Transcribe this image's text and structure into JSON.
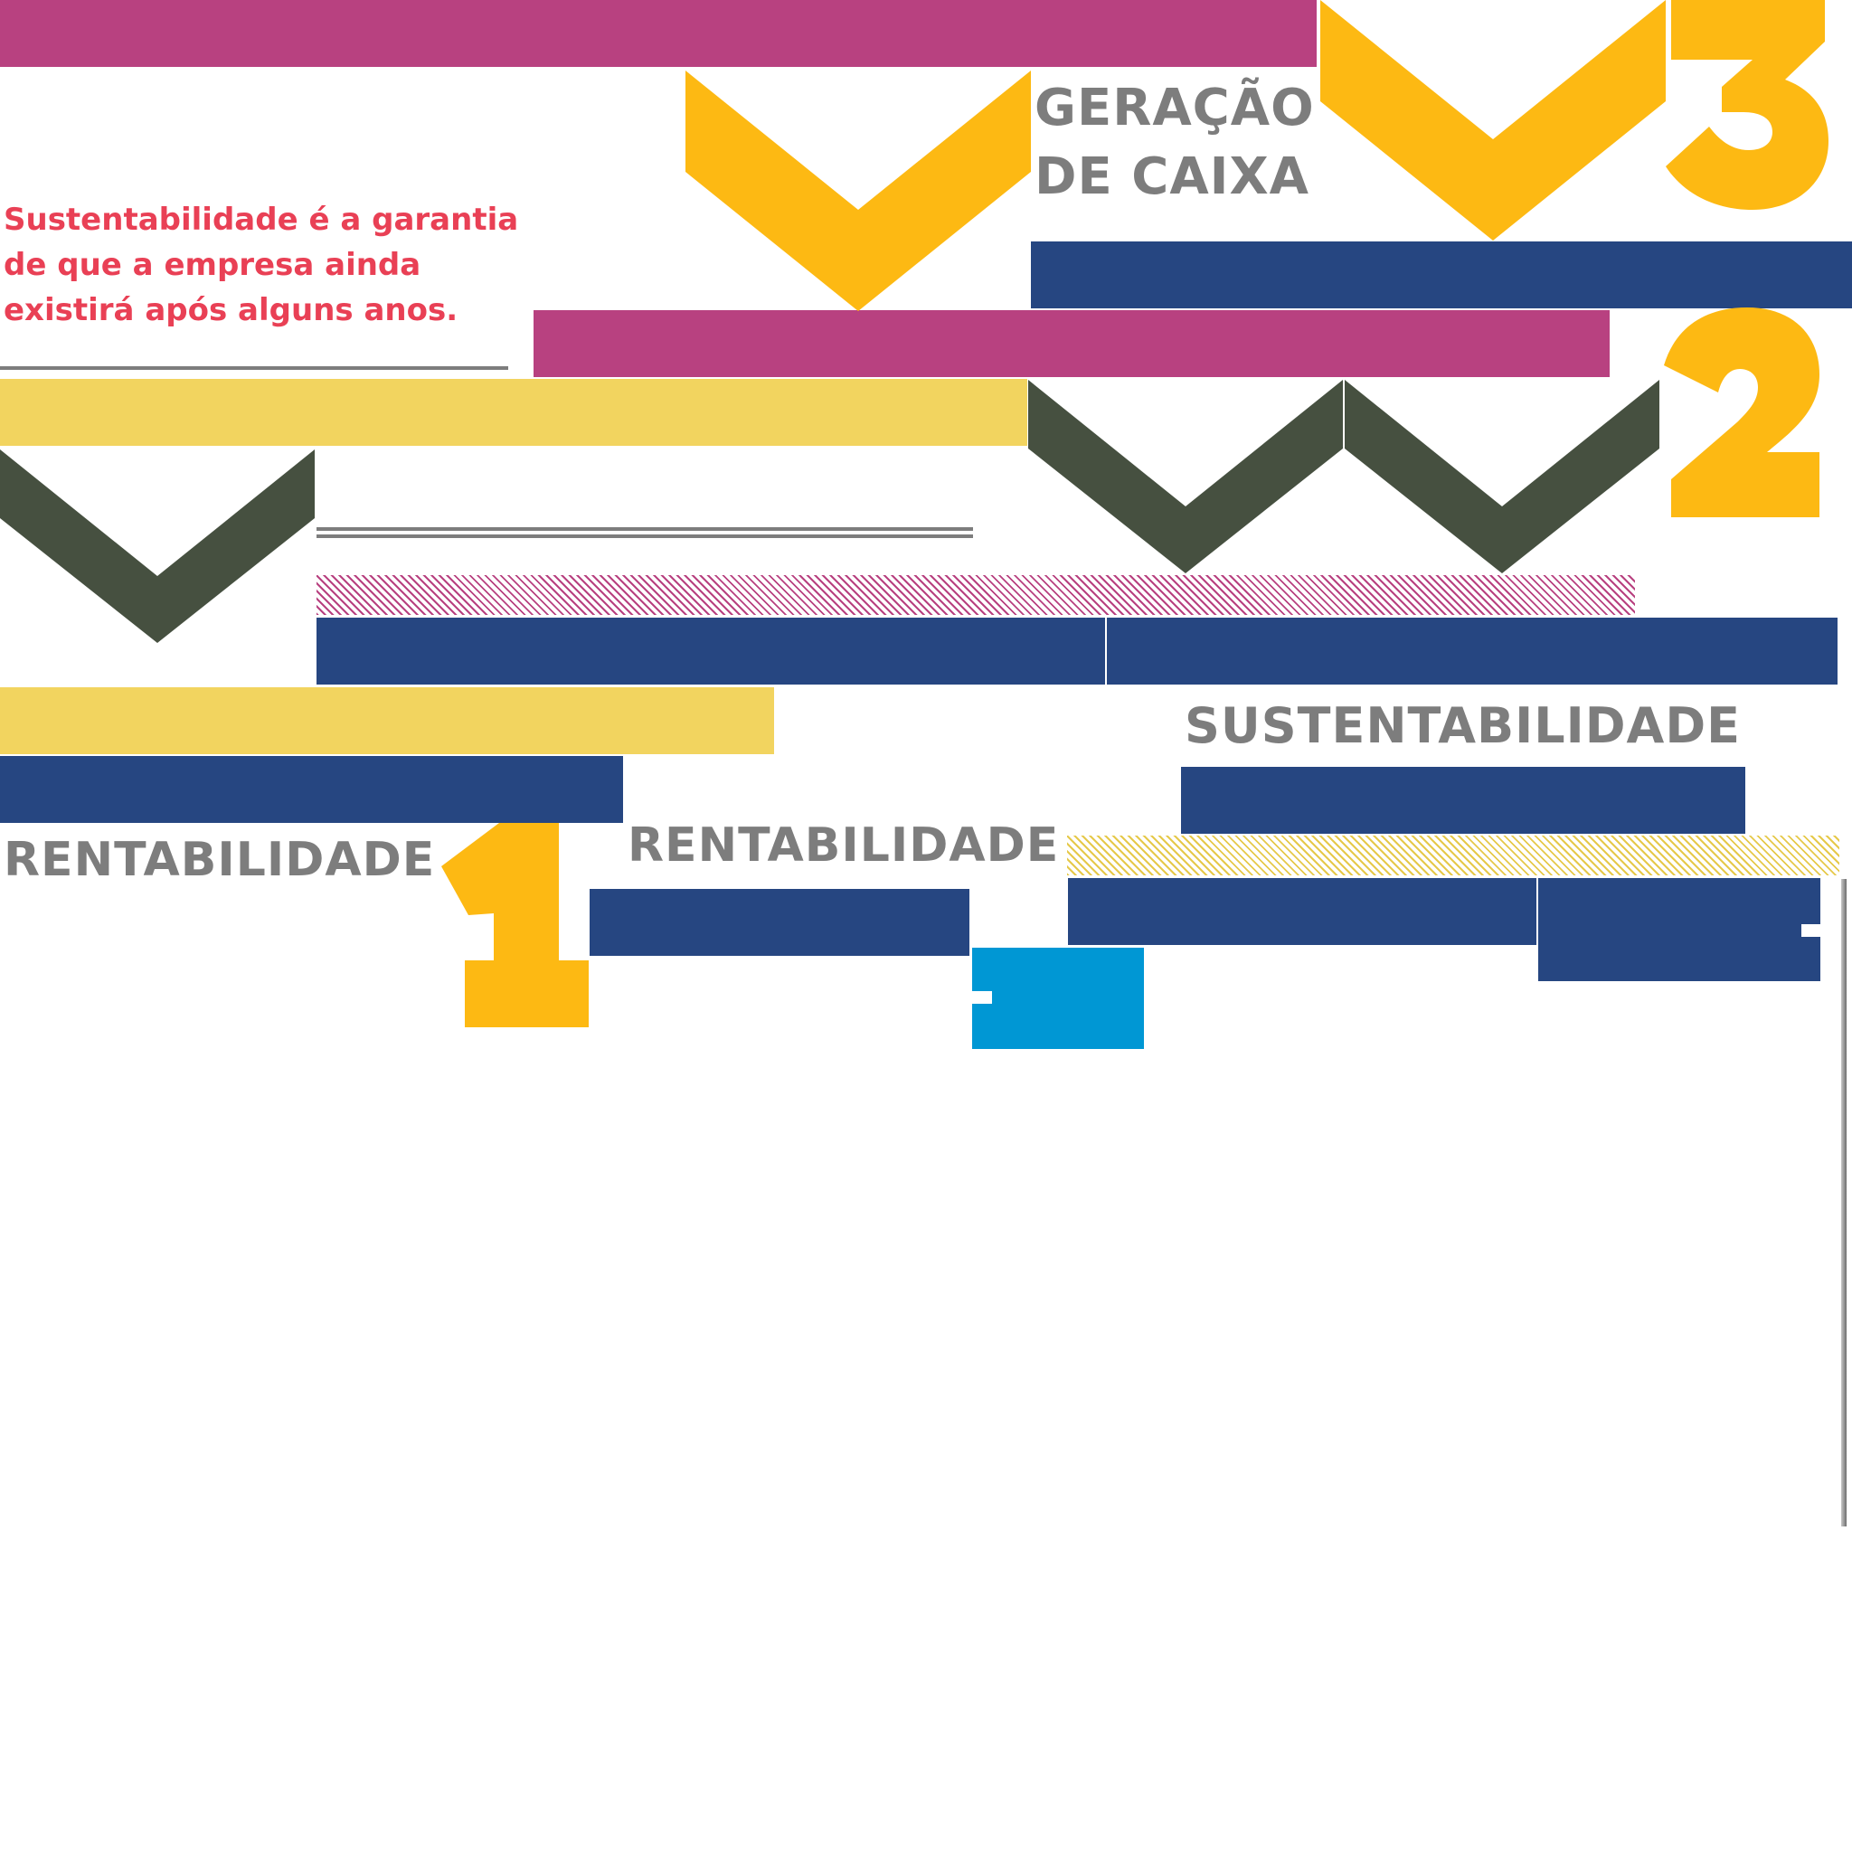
{
  "quote": "Sustentabilidade é a garantia de que a empresa ainda existirá após alguns anos.",
  "labels": {
    "geracao_line1": "GERAÇÃO",
    "geracao_line2": "DE CAIXA",
    "sustentabilidade": "SUSTENTABILIDADE",
    "rentabilidade_left": "RENTABILIDADE",
    "rentabilidade_center": "RENTABILIDADE"
  },
  "numbers": {
    "one": "1",
    "two": "2",
    "three": "3"
  },
  "colors": {
    "magenta": "#b84180",
    "navy": "#264681",
    "gold": "#fdb913",
    "pale_yellow": "#f2d45f",
    "olive": "#465040",
    "cyan": "#0097d4",
    "gray_text": "#7d7d7d",
    "quote_red": "#e94055"
  }
}
